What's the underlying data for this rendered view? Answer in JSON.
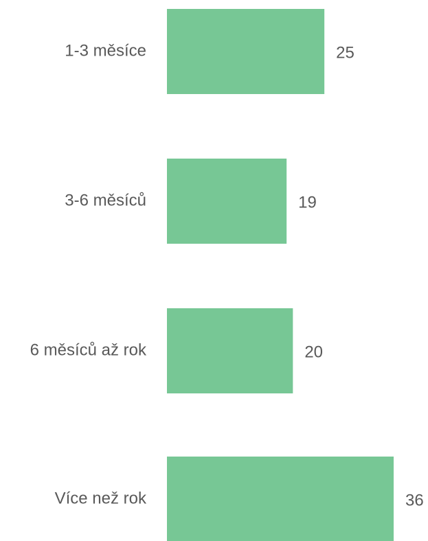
{
  "chart_data": {
    "type": "bar",
    "orientation": "horizontal",
    "categories": [
      "1-3 měsíce",
      "3-6 měsíců",
      "6 měsíců až rok",
      "Více než rok"
    ],
    "values": [
      25,
      19,
      20,
      36
    ],
    "color": "#77c795"
  }
}
